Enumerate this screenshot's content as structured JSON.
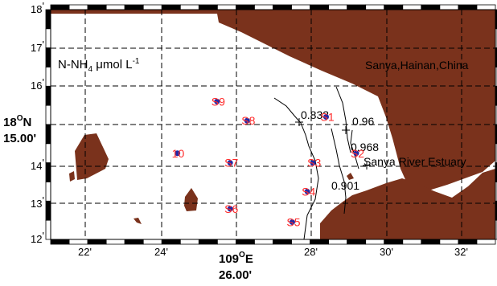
{
  "map": {
    "variable_main": "N-NH",
    "variable_sub": "4",
    "variable_unit": " μmol L",
    "variable_exp": "-1",
    "place_label": "Sanya,Hainan,China",
    "estuary_label": "Sanya River Estuary",
    "colors": {
      "land": "#7a321c",
      "station_marker": "#1f2aa8",
      "station_label": "#ff2a2a",
      "grid": "#000000"
    }
  },
  "axes": {
    "y_ticks": [
      {
        "id": "18",
        "deg": "18",
        "min": "'"
      },
      {
        "id": "17",
        "deg": "17",
        "min": "'"
      },
      {
        "id": "16",
        "deg": "16",
        "min": "'"
      },
      {
        "id": "14",
        "deg": "14",
        "min": "'"
      },
      {
        "id": "13",
        "deg": "13",
        "min": "'"
      },
      {
        "id": "12",
        "deg": "12",
        "min": "'"
      }
    ],
    "y_center": {
      "line1_main": "18",
      "line1_sup": "O",
      "line1_end": "N",
      "line2": "15.00'"
    },
    "x_ticks": [
      "22'",
      "24'",
      "28'",
      "30'",
      "32'"
    ],
    "x_center": {
      "line1_main": "109",
      "line1_sup": "O",
      "line1_end": "E",
      "line2": "26.00'"
    }
  },
  "stations": [
    {
      "id": "S1",
      "lon": 28.4,
      "lat": 15.2
    },
    {
      "id": "S2",
      "lon": 29.2,
      "lat": 14.25
    },
    {
      "id": "S3",
      "lon": 28.05,
      "lat": 14.0
    },
    {
      "id": "S4",
      "lon": 27.9,
      "lat": 13.25
    },
    {
      "id": "S5",
      "lon": 27.5,
      "lat": 12.45
    },
    {
      "id": "S6",
      "lon": 25.85,
      "lat": 12.8
    },
    {
      "id": "S7",
      "lon": 25.85,
      "lat": 14.0
    },
    {
      "id": "S8",
      "lon": 26.3,
      "lat": 15.1
    },
    {
      "id": "S9",
      "lon": 25.5,
      "lat": 15.6
    },
    {
      "id": "10",
      "lon": 24.45,
      "lat": 14.25
    }
  ],
  "contours": [
    {
      "value": "0.833"
    },
    {
      "value": "0.96"
    },
    {
      "value": "0.968"
    },
    {
      "value": "0.901"
    }
  ]
}
